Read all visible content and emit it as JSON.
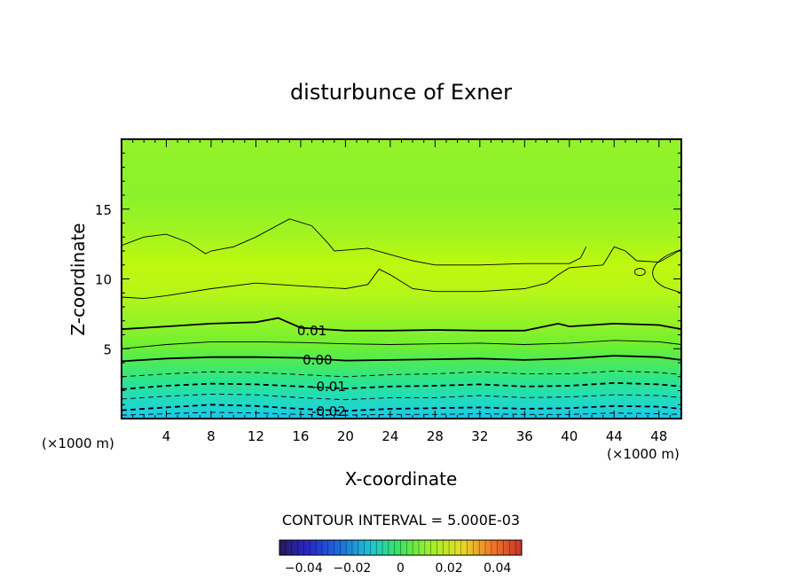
{
  "chart_data": {
    "type": "heatmap",
    "title": "disturbunce of Exner",
    "xlabel": "X-coordinate",
    "ylabel": "Z-coordinate",
    "x_unit": "(×1000 m)",
    "y_unit": "(×1000 m)",
    "xlim": [
      0,
      50
    ],
    "ylim": [
      0,
      20
    ],
    "x_ticks": [
      4,
      8,
      12,
      16,
      20,
      24,
      28,
      32,
      36,
      40,
      44,
      48
    ],
    "y_ticks": [
      5,
      10,
      15
    ],
    "contour_interval_text": "CONTOUR INTERVAL = 5.000E-03",
    "contour_labels": [
      {
        "text": "0.01",
        "value": 0.01,
        "x": 17.0,
        "z": 6.3
      },
      {
        "text": "0.00",
        "value": 0.0,
        "x": 17.5,
        "z": 4.2
      },
      {
        "text": "-0.01",
        "value": -0.01,
        "x": 18.5,
        "z": 2.3
      },
      {
        "text": "-0.02",
        "value": -0.02,
        "x": 18.5,
        "z": 0.5
      }
    ],
    "contours": [
      {
        "value": -0.025,
        "style": "dashed",
        "weight": "normal",
        "x": [
          0,
          4,
          8,
          12,
          16,
          20,
          24,
          28,
          32,
          36,
          40,
          44,
          48,
          50
        ],
        "z": [
          0.25,
          0.35,
          0.45,
          0.4,
          0.3,
          0.25,
          0.3,
          0.3,
          0.35,
          0.3,
          0.3,
          0.4,
          0.35,
          0.3
        ]
      },
      {
        "value": -0.02,
        "style": "dashed",
        "weight": "bold",
        "x": [
          0,
          4,
          8,
          12,
          16,
          20,
          24,
          28,
          32,
          36,
          40,
          44,
          48,
          50
        ],
        "z": [
          0.6,
          0.8,
          1.0,
          0.9,
          0.7,
          0.55,
          0.7,
          0.75,
          0.8,
          0.7,
          0.75,
          0.9,
          0.85,
          0.7
        ]
      },
      {
        "value": -0.015,
        "style": "dashed",
        "weight": "normal",
        "x": [
          0,
          4,
          8,
          12,
          16,
          20,
          24,
          28,
          32,
          36,
          40,
          44,
          48,
          50
        ],
        "z": [
          1.4,
          1.6,
          1.75,
          1.7,
          1.5,
          1.35,
          1.5,
          1.5,
          1.65,
          1.5,
          1.55,
          1.7,
          1.65,
          1.5
        ]
      },
      {
        "value": -0.01,
        "style": "dashed",
        "weight": "bold",
        "x": [
          0,
          4,
          8,
          12,
          16,
          20,
          24,
          28,
          32,
          36,
          40,
          44,
          48,
          50
        ],
        "z": [
          2.1,
          2.35,
          2.5,
          2.45,
          2.3,
          2.15,
          2.3,
          2.35,
          2.45,
          2.3,
          2.35,
          2.55,
          2.45,
          2.3
        ]
      },
      {
        "value": -0.005,
        "style": "dashed",
        "weight": "normal",
        "x": [
          0,
          4,
          8,
          12,
          16,
          20,
          24,
          28,
          32,
          36,
          40,
          44,
          48,
          50
        ],
        "z": [
          3.0,
          3.2,
          3.35,
          3.3,
          3.15,
          3.0,
          3.15,
          3.2,
          3.35,
          3.2,
          3.2,
          3.4,
          3.3,
          3.15
        ]
      },
      {
        "value": 0.0,
        "style": "solid",
        "weight": "bold",
        "x": [
          0,
          4,
          8,
          12,
          16,
          20,
          24,
          28,
          32,
          36,
          40,
          44,
          48,
          50
        ],
        "z": [
          4.1,
          4.3,
          4.4,
          4.4,
          4.35,
          4.15,
          4.2,
          4.25,
          4.3,
          4.2,
          4.3,
          4.5,
          4.4,
          4.2
        ]
      },
      {
        "value": 0.005,
        "style": "solid",
        "weight": "normal",
        "x": [
          0,
          4,
          8,
          12,
          16,
          20,
          24,
          28,
          32,
          36,
          40,
          44,
          48,
          50
        ],
        "z": [
          5.0,
          5.3,
          5.5,
          5.5,
          5.45,
          5.35,
          5.3,
          5.35,
          5.4,
          5.3,
          5.4,
          5.6,
          5.5,
          5.3
        ]
      },
      {
        "value": 0.01,
        "style": "solid",
        "weight": "bold",
        "x": [
          0,
          4,
          8,
          12,
          14,
          16,
          20,
          24,
          28,
          32,
          36,
          39,
          40,
          44,
          48,
          50
        ],
        "z": [
          6.4,
          6.6,
          6.8,
          6.9,
          7.2,
          6.5,
          6.3,
          6.3,
          6.35,
          6.3,
          6.3,
          6.8,
          6.6,
          6.8,
          6.7,
          6.4
        ]
      },
      {
        "value": 0.015,
        "style": "solid",
        "weight": "normal",
        "x": [
          0,
          2,
          4,
          8,
          12,
          16,
          20,
          22,
          23,
          24,
          26,
          28,
          32,
          36,
          38,
          39,
          40,
          43,
          44,
          45,
          46,
          48,
          50
        ],
        "z": [
          8.7,
          8.6,
          8.8,
          9.3,
          9.7,
          9.5,
          9.3,
          9.6,
          10.7,
          10.3,
          9.3,
          9.1,
          9.1,
          9.3,
          9.7,
          10.3,
          10.8,
          11.0,
          12.3,
          12.0,
          11.3,
          11.2,
          12.1
        ]
      },
      {
        "value": 0.015,
        "style": "solid",
        "weight": "normal",
        "x": [
          0,
          2,
          4,
          6,
          7.5,
          8,
          10,
          12,
          15,
          17,
          18.5,
          19,
          22,
          26,
          28,
          32,
          36,
          40,
          41,
          41.5
        ],
        "z": [
          12.4,
          13.0,
          13.2,
          12.6,
          11.8,
          12.0,
          12.3,
          13.0,
          14.3,
          13.8,
          12.5,
          12.0,
          12.2,
          11.3,
          11.0,
          11.0,
          11.1,
          11.1,
          11.5,
          12.3
        ]
      }
    ],
    "colorbar": {
      "vmin": -0.05,
      "vmax": 0.05,
      "ticks": [
        -0.04,
        -0.02,
        0,
        0.02,
        0.04
      ],
      "tick_labels": [
        "−0.04",
        "−0.02",
        "0",
        "0.02",
        "0.04"
      ]
    }
  }
}
